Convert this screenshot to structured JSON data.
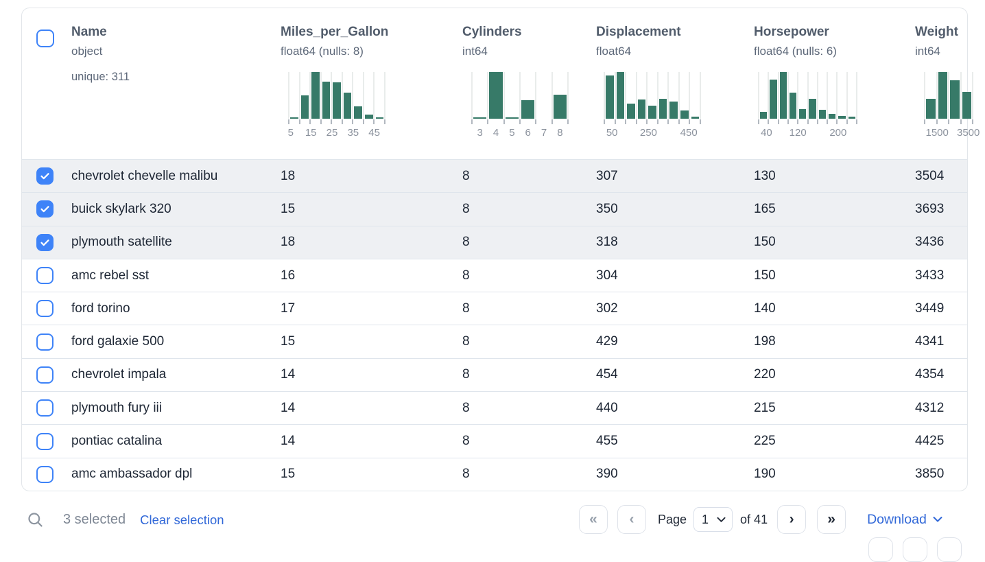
{
  "grid": {
    "columns": [
      {
        "title": "Name",
        "dtype": "object",
        "stat": "unique: 311"
      },
      {
        "title": "Miles_per_Gallon",
        "dtype": "float64 (nulls: 8)"
      },
      {
        "title": "Cylinders",
        "dtype": "int64"
      },
      {
        "title": "Displacement",
        "dtype": "float64"
      },
      {
        "title": "Horsepower",
        "dtype": "float64 (nulls: 6)"
      },
      {
        "title": "Weight",
        "dtype": "int64"
      }
    ],
    "rows": [
      {
        "selected": true,
        "name": "chevrolet chevelle malibu",
        "miles_per_gallon": "18",
        "cylinders": "8",
        "displacement": "307",
        "horsepower": "130",
        "weight": "3504"
      },
      {
        "selected": true,
        "name": "buick skylark 320",
        "miles_per_gallon": "15",
        "cylinders": "8",
        "displacement": "350",
        "horsepower": "165",
        "weight": "3693"
      },
      {
        "selected": true,
        "name": "plymouth satellite",
        "miles_per_gallon": "18",
        "cylinders": "8",
        "displacement": "318",
        "horsepower": "150",
        "weight": "3436"
      },
      {
        "selected": false,
        "name": "amc rebel sst",
        "miles_per_gallon": "16",
        "cylinders": "8",
        "displacement": "304",
        "horsepower": "150",
        "weight": "3433"
      },
      {
        "selected": false,
        "name": "ford torino",
        "miles_per_gallon": "17",
        "cylinders": "8",
        "displacement": "302",
        "horsepower": "140",
        "weight": "3449"
      },
      {
        "selected": false,
        "name": "ford galaxie 500",
        "miles_per_gallon": "15",
        "cylinders": "8",
        "displacement": "429",
        "horsepower": "198",
        "weight": "4341"
      },
      {
        "selected": false,
        "name": "chevrolet impala",
        "miles_per_gallon": "14",
        "cylinders": "8",
        "displacement": "454",
        "horsepower": "220",
        "weight": "4354"
      },
      {
        "selected": false,
        "name": "plymouth fury iii",
        "miles_per_gallon": "14",
        "cylinders": "8",
        "displacement": "440",
        "horsepower": "215",
        "weight": "4312"
      },
      {
        "selected": false,
        "name": "pontiac catalina",
        "miles_per_gallon": "14",
        "cylinders": "8",
        "displacement": "455",
        "horsepower": "225",
        "weight": "4425"
      },
      {
        "selected": false,
        "name": "amc ambassador dpl",
        "miles_per_gallon": "15",
        "cylinders": "8",
        "displacement": "390",
        "horsepower": "190",
        "weight": "3850"
      }
    ]
  },
  "chart_data": [
    {
      "type": "bar",
      "column": "Miles_per_Gallon",
      "rel_heights": [
        3,
        50,
        100,
        79,
        78,
        56,
        26,
        9,
        3
      ],
      "tick_labels": [
        {
          "text": "5",
          "pos": 0.02
        },
        {
          "text": "15",
          "pos": 0.23
        },
        {
          "text": "25",
          "pos": 0.45
        },
        {
          "text": "35",
          "pos": 0.67
        },
        {
          "text": "45",
          "pos": 0.89
        }
      ]
    },
    {
      "type": "bar",
      "column": "Cylinders",
      "rel_heights": [
        3,
        100,
        3,
        40,
        0,
        52
      ],
      "tick_labels": [
        {
          "text": "3",
          "pos": 0.083
        },
        {
          "text": "4",
          "pos": 0.25
        },
        {
          "text": "5",
          "pos": 0.417
        },
        {
          "text": "6",
          "pos": 0.583
        },
        {
          "text": "7",
          "pos": 0.75
        },
        {
          "text": "8",
          "pos": 0.917
        }
      ]
    },
    {
      "type": "bar",
      "column": "Displacement",
      "rel_heights": [
        92,
        100,
        33,
        41,
        28,
        43,
        37,
        17,
        5
      ],
      "tick_labels": [
        {
          "text": "50",
          "pos": 0.08
        },
        {
          "text": "250",
          "pos": 0.46
        },
        {
          "text": "450",
          "pos": 0.88
        }
      ]
    },
    {
      "type": "bar",
      "column": "Horsepower",
      "rel_heights": [
        15,
        84,
        100,
        56,
        21,
        43,
        19,
        10,
        6,
        5
      ],
      "tick_labels": [
        {
          "text": "40",
          "pos": 0.08
        },
        {
          "text": "120",
          "pos": 0.4
        },
        {
          "text": "200",
          "pos": 0.81
        }
      ]
    },
    {
      "type": "bar",
      "column": "Weight",
      "rel_heights": [
        42,
        100,
        82,
        58
      ],
      "tick_labels": [
        {
          "text": "1500",
          "pos": 0.26
        },
        {
          "text": "3500",
          "pos": 0.91
        }
      ]
    }
  ],
  "footer": {
    "selected_count": "3 selected",
    "clear_selection": "Clear selection",
    "page_label": "Page",
    "page_value": "1",
    "of_label": "of 41",
    "download_label": "Download"
  },
  "colors": {
    "accent_blue": "#3e83f8",
    "link_blue": "#3168d8",
    "histogram_green": "#377a68",
    "selected_row_bg": "#eef0f3",
    "row_border": "#dfe5ec"
  }
}
